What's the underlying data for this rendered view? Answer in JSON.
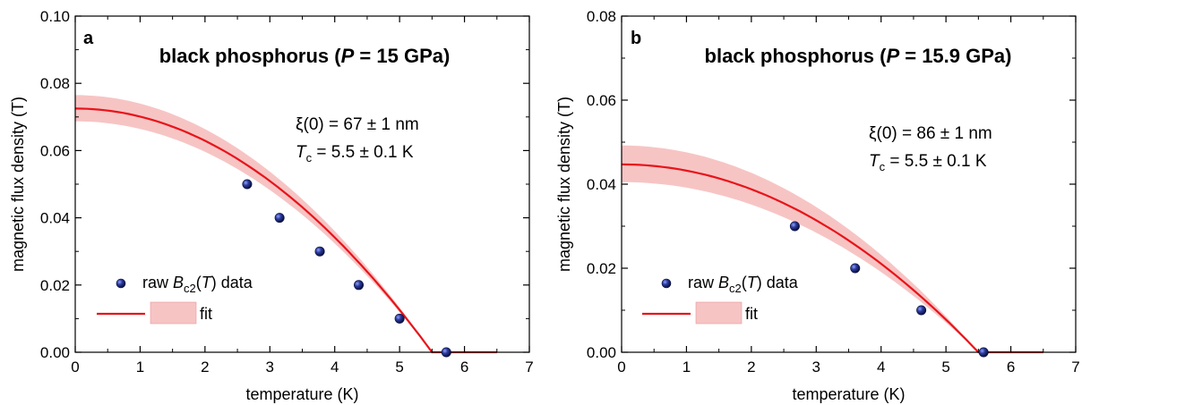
{
  "chart_data": [
    {
      "type": "scatter",
      "panel": "a",
      "title_main": "black phosphorus (",
      "title_var": "P",
      "title_rest": " = 15 GPa)",
      "annotation_line1": "ξ(0) = 67 ± 1 nm",
      "annotation_line2_var": "T",
      "annotation_line2_sub": "c",
      "annotation_line2_rest": " = 5.5 ± 0.1 K",
      "xlabel": "temperature (K)",
      "ylabel": "magnetic flux density (T)",
      "xlim": [
        0,
        7
      ],
      "ylim": [
        0,
        0.1
      ],
      "xticks": [
        "0",
        "1",
        "2",
        "3",
        "4",
        "5",
        "6",
        "7"
      ],
      "yticks": [
        "0.00",
        "0.02",
        "0.04",
        "0.06",
        "0.08",
        "0.10"
      ],
      "points": [
        {
          "x": 2.65,
          "y": 0.05
        },
        {
          "x": 3.15,
          "y": 0.04
        },
        {
          "x": 3.77,
          "y": 0.03
        },
        {
          "x": 4.37,
          "y": 0.02
        },
        {
          "x": 5.0,
          "y": 0.01
        },
        {
          "x": 5.72,
          "y": 0.0
        }
      ],
      "fit": {
        "B0": 0.0725,
        "Tc": 5.5,
        "x_end": 6.5,
        "band_low": 0.0687,
        "band_high": 0.0765
      },
      "legend": {
        "data_prefix": "raw ",
        "data_var": "B",
        "data_sub": "c2",
        "data_open": "(",
        "data_arg": "T",
        "data_close": ") data",
        "fit_label": "fit",
        "placement": "bottom-left"
      },
      "colors": {
        "fit_line": "#e8141a",
        "band": "#f7c4c4",
        "marker": "#1c2a7a"
      }
    },
    {
      "type": "scatter",
      "panel": "b",
      "title_main": "black phosphorus (",
      "title_var": "P",
      "title_rest": " = 15.9 GPa)",
      "annotation_line1": "ξ(0) = 86 ± 1 nm",
      "annotation_line2_var": "T",
      "annotation_line2_sub": "c",
      "annotation_line2_rest": " = 5.5 ± 0.1 K",
      "xlabel": "temperature (K)",
      "ylabel": "magnetic flux density (T)",
      "xlim": [
        0,
        7
      ],
      "ylim": [
        0,
        0.08
      ],
      "xticks": [
        "0",
        "1",
        "2",
        "3",
        "4",
        "5",
        "6",
        "7"
      ],
      "yticks": [
        "0.00",
        "0.02",
        "0.04",
        "0.06",
        "0.08"
      ],
      "points": [
        {
          "x": 2.67,
          "y": 0.03
        },
        {
          "x": 3.6,
          "y": 0.02
        },
        {
          "x": 4.62,
          "y": 0.01
        },
        {
          "x": 5.58,
          "y": 0.0
        }
      ],
      "fit": {
        "B0": 0.0447,
        "Tc": 5.5,
        "x_end": 6.5,
        "band_low": 0.0405,
        "band_high": 0.0492
      },
      "legend": {
        "data_prefix": "raw ",
        "data_var": "B",
        "data_sub": "c2",
        "data_open": "(",
        "data_arg": "T",
        "data_close": ") data",
        "fit_label": "fit",
        "placement": "bottom-left"
      },
      "colors": {
        "fit_line": "#e8141a",
        "band": "#f7c4c4",
        "marker": "#1c2a7a"
      }
    }
  ]
}
